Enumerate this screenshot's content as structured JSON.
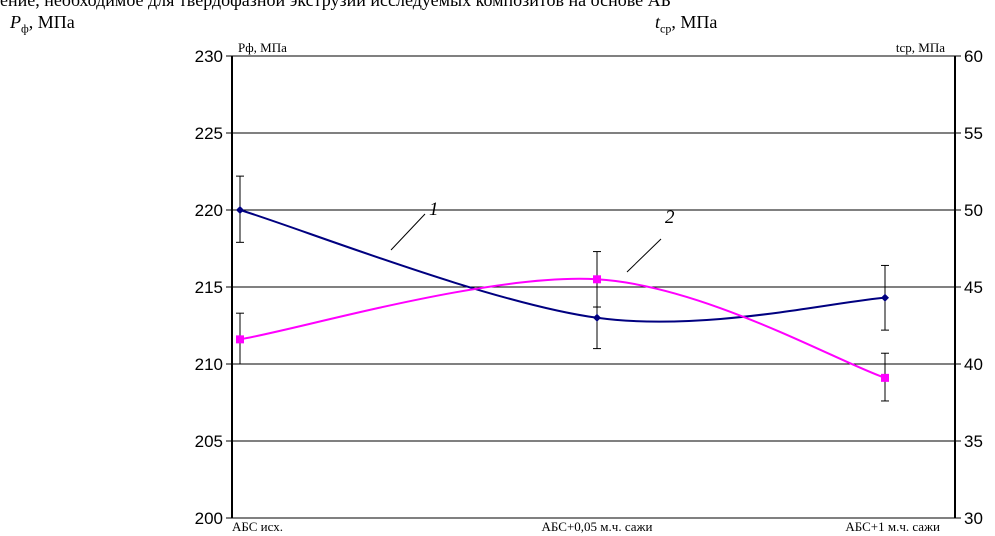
{
  "caption_fragment": "ение, необходимое для твердофазной экструзии исследуемых композитов на основе АБ",
  "left_outer_label": {
    "symbol": "P",
    "sub": "ф",
    "unit": ", МПа"
  },
  "right_outer_label": {
    "symbol": "t",
    "sub": "ср",
    "unit": ", МПа"
  },
  "chart_data": {
    "type": "line",
    "categories": [
      "АБС исх.",
      "АБС+0,05 м.ч. сажи",
      "АБС+1 м.ч. сажи"
    ],
    "y_left": {
      "label": "Pф, МПа",
      "ylim": [
        200,
        230
      ],
      "ticks": [
        "200",
        "205",
        "210",
        "215",
        "220",
        "225",
        "230"
      ]
    },
    "y_right": {
      "label": "tср, МПа",
      "ylim": [
        30,
        60
      ],
      "ticks": [
        "30",
        "35",
        "40",
        "45",
        "50",
        "55",
        "60"
      ]
    },
    "grid": true,
    "series": [
      {
        "name": "1",
        "axis": "left",
        "color": "#000080",
        "marker": "diamond",
        "values": [
          220.0,
          213.0,
          214.3
        ],
        "err_low": [
          217.9,
          211.0,
          212.2
        ],
        "err_high": [
          222.2,
          215.0,
          216.4
        ]
      },
      {
        "name": "2",
        "axis": "right",
        "color": "#ff00ff",
        "marker": "square",
        "values": [
          41.6,
          45.5,
          39.1
        ],
        "err_low": [
          40.0,
          43.7,
          37.6
        ],
        "err_high": [
          43.3,
          47.3,
          40.7
        ]
      }
    ]
  }
}
